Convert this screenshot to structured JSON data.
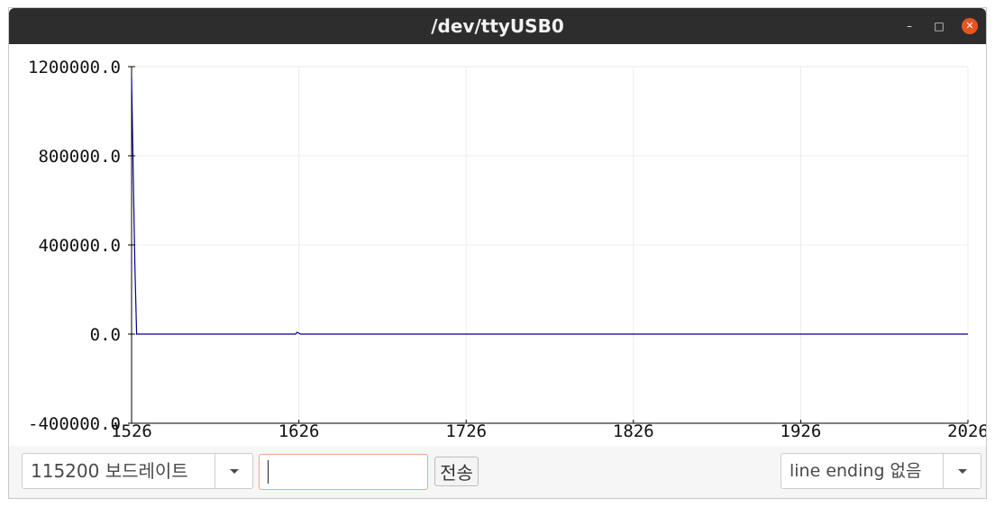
{
  "window": {
    "title": "/dev/ttyUSB0",
    "minimize_glyph": "–",
    "maximize_glyph": "□",
    "close_glyph": "✕"
  },
  "chart_data": {
    "type": "line",
    "title": "",
    "xlabel": "",
    "ylabel": "",
    "xlim": [
      1526,
      2026
    ],
    "ylim": [
      -400000,
      1200000
    ],
    "x_ticks": [
      "1526",
      "1626",
      "1726",
      "1826",
      "1926",
      "2026"
    ],
    "x_tick_values": [
      1526,
      1626,
      1726,
      1826,
      1926,
      2026
    ],
    "y_ticks": [
      "1200000.0",
      "800000.0",
      "400000.0",
      "0.0",
      "-400000.0"
    ],
    "y_tick_values": [
      1200000,
      800000,
      400000,
      0,
      -400000
    ],
    "grid": true,
    "line_color": "#00008b",
    "series": [
      {
        "values_x": [
          1526,
          1527,
          1528,
          1529,
          1530,
          1560,
          1600,
          1624,
          1625,
          1626,
          1627,
          1628,
          1700,
          1800,
          1900,
          2026
        ],
        "values_y": [
          1150000,
          700000,
          300000,
          0,
          0,
          0,
          0,
          0,
          8000,
          4000,
          0,
          0,
          0,
          0,
          0,
          0
        ]
      }
    ]
  },
  "controls": {
    "baud_rate": "115200 보드레이트",
    "message_value": "",
    "send_label": "전송",
    "line_ending": "line ending 없음"
  },
  "colors": {
    "titlebar": "#2d2d2d",
    "close_button": "#e95420",
    "input_border": "#e8a98a"
  }
}
